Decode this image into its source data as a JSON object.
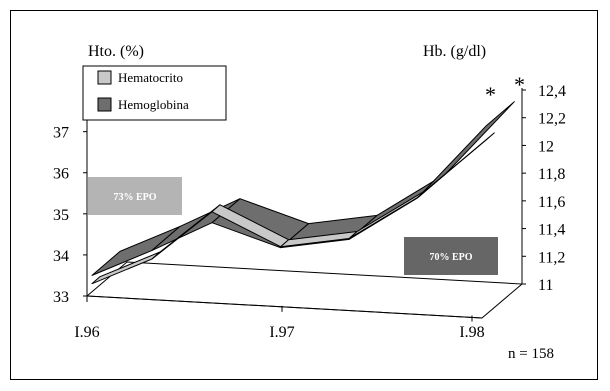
{
  "chart_data": {
    "type": "line",
    "x_tick_labels": [
      "I.96",
      "I.97",
      "I.98"
    ],
    "left_axis": {
      "label": "Hto. (%)",
      "ticks": [
        33,
        34,
        35,
        36,
        37
      ],
      "ylim": [
        33,
        37.6
      ]
    },
    "right_axis": {
      "label": "Hb. (g/dl)",
      "ticks": [
        "11",
        "11,2",
        "11,4",
        "11,6",
        "11,8",
        "12",
        "12,2",
        "12,4"
      ],
      "ylim": [
        11,
        12.4
      ]
    },
    "series": [
      {
        "name": "Hematocrito",
        "axis": "left",
        "color": "#c8c8c8",
        "x": [
          0,
          0.35,
          0.7,
          1.1,
          1.5,
          1.9,
          2.3
        ],
        "values": [
          33.3,
          33.9,
          35.05,
          34.2,
          34.4,
          35.4,
          36.8
        ]
      },
      {
        "name": "Hemoglobina",
        "axis": "right",
        "color": "#6e6e6e",
        "x": [
          0,
          0.35,
          0.7,
          1.1,
          1.5,
          1.9,
          2.3
        ],
        "values": [
          11.12,
          11.3,
          11.5,
          11.32,
          11.38,
          11.68,
          12.2
        ]
      }
    ],
    "annotations": {
      "box_left": {
        "text": "73% EPO",
        "color": "#b4b4b4"
      },
      "box_right": {
        "text": "70% EPO",
        "color": "#666666"
      },
      "asterisk": "*",
      "note": "n = 158"
    },
    "legend_position": "top-left",
    "grid": false
  }
}
